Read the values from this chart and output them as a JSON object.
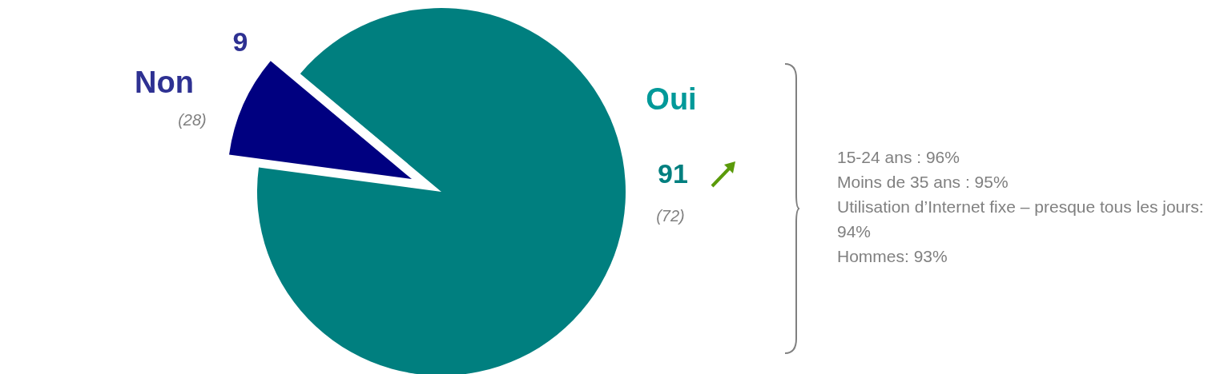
{
  "chart_data": {
    "type": "pie",
    "categories": [
      "Non",
      "Oui"
    ],
    "values": [
      9,
      91
    ],
    "colors": [
      "#000080",
      "#007f7f"
    ],
    "data_labels": true,
    "legend": false,
    "annotations": [
      "(28)",
      "(72)",
      "15-24 ans : 96%",
      "Moins de 35 ans : 95%",
      "Utilisation d’Internet fixe – presque tous les jours: 94%",
      "Hommes: 93%"
    ]
  }
}
